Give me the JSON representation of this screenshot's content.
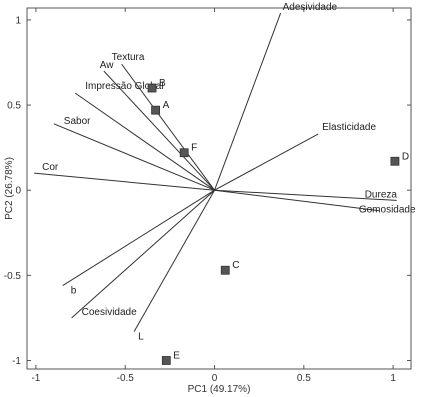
{
  "chart_data": {
    "type": "scatter",
    "subtype": "biplot",
    "title": "",
    "xlabel": "PC1 (49.17%)",
    "ylabel": "PC2 (26.78%)",
    "xlim": [
      -1.05,
      1.1
    ],
    "ylim": [
      -1.05,
      1.07
    ],
    "xticks": [
      {
        "value": -1,
        "label": "-1"
      },
      {
        "value": -0.5,
        "label": "-0.5"
      },
      {
        "value": 0,
        "label": "0"
      },
      {
        "value": 0.5,
        "label": "0.5"
      },
      {
        "value": 1,
        "label": "1"
      }
    ],
    "yticks": [
      {
        "value": 1,
        "label": "1"
      },
      {
        "value": 0.5,
        "label": "0.5"
      },
      {
        "value": 0,
        "label": "0"
      },
      {
        "value": -0.5,
        "label": "-0.5"
      },
      {
        "value": -1,
        "label": "-1"
      }
    ],
    "grid": false,
    "origin": [
      0,
      0
    ],
    "loadings": [
      {
        "name": "Adesividade",
        "x": 0.37,
        "y": 1.04
      },
      {
        "name": "Elasticidade",
        "x": 0.58,
        "y": 0.33
      },
      {
        "name": "Dureza",
        "x": 1.02,
        "y": -0.06
      },
      {
        "name": "Gomosidade",
        "x": 0.92,
        "y": -0.12
      },
      {
        "name": "Textura",
        "x": -0.52,
        "y": 0.74
      },
      {
        "name": "Aw",
        "x": -0.62,
        "y": 0.7
      },
      {
        "name": "Impressão Global",
        "x": -0.78,
        "y": 0.57
      },
      {
        "name": "Sabor",
        "x": -0.9,
        "y": 0.39
      },
      {
        "name": "Cor",
        "x": -1.01,
        "y": 0.1
      },
      {
        "name": "b",
        "x": -0.85,
        "y": -0.56
      },
      {
        "name": "Coesividade",
        "x": -0.8,
        "y": -0.75
      },
      {
        "name": "L",
        "x": -0.45,
        "y": -0.83
      }
    ],
    "samples": [
      {
        "name": "A",
        "x": -0.33,
        "y": 0.47
      },
      {
        "name": "B",
        "x": -0.35,
        "y": 0.6
      },
      {
        "name": "C",
        "x": 0.06,
        "y": -0.47
      },
      {
        "name": "D",
        "x": 1.01,
        "y": 0.17
      },
      {
        "name": "E",
        "x": -0.27,
        "y": -1.0
      },
      {
        "name": "F",
        "x": -0.17,
        "y": 0.22
      }
    ]
  }
}
